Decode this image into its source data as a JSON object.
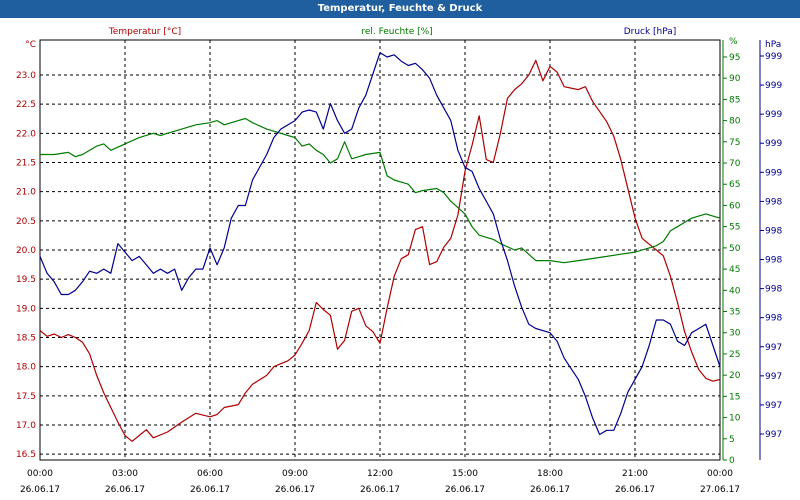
{
  "window": {
    "title": "Temperatur, Feuchte & Druck"
  },
  "chart_data": {
    "type": "line",
    "title": "Temperatur, Feuchte & Druck",
    "x_ticks": [
      {
        "time": "00:00",
        "date": "26.06.17"
      },
      {
        "time": "03:00",
        "date": "26.06.17"
      },
      {
        "time": "06:00",
        "date": "26.06.17"
      },
      {
        "time": "09:00",
        "date": "26.06.17"
      },
      {
        "time": "12:00",
        "date": "26.06.17"
      },
      {
        "time": "15:00",
        "date": "26.06.17"
      },
      {
        "time": "18:00",
        "date": "26.06.17"
      },
      {
        "time": "21:00",
        "date": "26.06.17"
      },
      {
        "time": "00:00",
        "date": "27.06.17"
      }
    ],
    "x_range_hours": [
      0,
      24
    ],
    "grid": true,
    "axes": {
      "temperature": {
        "label": "Temperatur [°C]",
        "unit": "°C",
        "color": "#b00000",
        "side": "left",
        "ylim": [
          16.4,
          23.6
        ],
        "ticks": [
          "16.5",
          "17.0",
          "17.5",
          "18.0",
          "18.5",
          "19.0",
          "19.5",
          "20.0",
          "20.5",
          "21.0",
          "21.5",
          "22.0",
          "22.5",
          "23.0"
        ]
      },
      "humidity": {
        "label": "rel. Feuchte [%]",
        "unit": "%",
        "color": "#007a00",
        "side": "right",
        "ylim": [
          0,
          99
        ],
        "ticks": [
          "0",
          "5",
          "10",
          "15",
          "20",
          "25",
          "30",
          "35",
          "40",
          "45",
          "50",
          "55",
          "60",
          "65",
          "70",
          "75",
          "80",
          "85",
          "90",
          "95"
        ]
      },
      "pressure": {
        "label": "Druck [hPa]",
        "unit": "hPa",
        "color": "#000090",
        "side": "right",
        "ticks": [
          "997",
          "997",
          "997",
          "997",
          "998",
          "998",
          "998",
          "998",
          "998",
          "999",
          "999",
          "999",
          "999",
          "999"
        ]
      }
    },
    "series": [
      {
        "name": "Temperatur [°C]",
        "axis": "temperature",
        "color": "#b00000",
        "points": [
          [
            0,
            18.62
          ],
          [
            0.25,
            18.52
          ],
          [
            0.5,
            18.56
          ],
          [
            0.75,
            18.5
          ],
          [
            1,
            18.55
          ],
          [
            1.25,
            18.5
          ],
          [
            1.5,
            18.42
          ],
          [
            1.75,
            18.22
          ],
          [
            2,
            17.85
          ],
          [
            2.25,
            17.55
          ],
          [
            2.5,
            17.3
          ],
          [
            2.75,
            17.05
          ],
          [
            3,
            16.82
          ],
          [
            3.25,
            16.72
          ],
          [
            3.5,
            16.82
          ],
          [
            3.75,
            16.92
          ],
          [
            4,
            16.78
          ],
          [
            4.5,
            16.88
          ],
          [
            5,
            17.05
          ],
          [
            5.5,
            17.2
          ],
          [
            6,
            17.14
          ],
          [
            6.25,
            17.18
          ],
          [
            6.5,
            17.3
          ],
          [
            7,
            17.35
          ],
          [
            7.25,
            17.55
          ],
          [
            7.5,
            17.7
          ],
          [
            8,
            17.85
          ],
          [
            8.25,
            18.0
          ],
          [
            8.5,
            18.05
          ],
          [
            8.75,
            18.1
          ],
          [
            9,
            18.2
          ],
          [
            9.25,
            18.4
          ],
          [
            9.5,
            18.62
          ],
          [
            9.75,
            19.1
          ],
          [
            10,
            18.98
          ],
          [
            10.25,
            18.88
          ],
          [
            10.5,
            18.3
          ],
          [
            10.75,
            18.45
          ],
          [
            11,
            18.95
          ],
          [
            11.25,
            19.0
          ],
          [
            11.5,
            18.7
          ],
          [
            11.75,
            18.6
          ],
          [
            12,
            18.4
          ],
          [
            12.25,
            19.0
          ],
          [
            12.5,
            19.55
          ],
          [
            12.75,
            19.85
          ],
          [
            13,
            19.92
          ],
          [
            13.25,
            20.35
          ],
          [
            13.5,
            20.4
          ],
          [
            13.75,
            19.75
          ],
          [
            14,
            19.8
          ],
          [
            14.25,
            20.05
          ],
          [
            14.5,
            20.2
          ],
          [
            14.75,
            20.6
          ],
          [
            15,
            21.35
          ],
          [
            15.25,
            21.8
          ],
          [
            15.5,
            22.3
          ],
          [
            15.75,
            21.55
          ],
          [
            16,
            21.5
          ],
          [
            16.25,
            22.0
          ],
          [
            16.5,
            22.6
          ],
          [
            16.75,
            22.75
          ],
          [
            17,
            22.85
          ],
          [
            17.25,
            23.0
          ],
          [
            17.5,
            23.25
          ],
          [
            17.75,
            22.9
          ],
          [
            18,
            23.15
          ],
          [
            18.25,
            23.05
          ],
          [
            18.5,
            22.8
          ],
          [
            19,
            22.75
          ],
          [
            19.25,
            22.8
          ],
          [
            19.5,
            22.55
          ],
          [
            20,
            22.2
          ],
          [
            20.25,
            21.95
          ],
          [
            20.5,
            21.55
          ],
          [
            20.75,
            21.05
          ],
          [
            21,
            20.55
          ],
          [
            21.25,
            20.2
          ],
          [
            21.5,
            20.1
          ],
          [
            21.75,
            20.0
          ],
          [
            22,
            19.9
          ],
          [
            22.25,
            19.55
          ],
          [
            22.5,
            19.1
          ],
          [
            22.75,
            18.6
          ],
          [
            23,
            18.25
          ],
          [
            23.25,
            17.95
          ],
          [
            23.5,
            17.8
          ],
          [
            23.75,
            17.75
          ],
          [
            24,
            17.78
          ]
        ]
      },
      {
        "name": "rel. Feuchte [%]",
        "axis": "humidity",
        "color": "#007a00",
        "points": [
          [
            0,
            72
          ],
          [
            0.5,
            72
          ],
          [
            1,
            72.5
          ],
          [
            1.25,
            71.5
          ],
          [
            1.5,
            72
          ],
          [
            2,
            74
          ],
          [
            2.25,
            74.5
          ],
          [
            2.5,
            73
          ],
          [
            3,
            74.5
          ],
          [
            3.5,
            76
          ],
          [
            4,
            77
          ],
          [
            4.25,
            76.5
          ],
          [
            4.5,
            77
          ],
          [
            5,
            78
          ],
          [
            5.5,
            79
          ],
          [
            6,
            79.5
          ],
          [
            6.25,
            80
          ],
          [
            6.5,
            79
          ],
          [
            7,
            80
          ],
          [
            7.25,
            80.5
          ],
          [
            7.5,
            79.5
          ],
          [
            8,
            78
          ],
          [
            8.5,
            77
          ],
          [
            8.75,
            76.5
          ],
          [
            9,
            76
          ],
          [
            9.25,
            74
          ],
          [
            9.5,
            74.5
          ],
          [
            9.75,
            73
          ],
          [
            10,
            72
          ],
          [
            10.25,
            70
          ],
          [
            10.5,
            71
          ],
          [
            10.75,
            75
          ],
          [
            11,
            71
          ],
          [
            11.25,
            71.5
          ],
          [
            11.5,
            72
          ],
          [
            12,
            72.5
          ],
          [
            12.25,
            67
          ],
          [
            12.5,
            66
          ],
          [
            13,
            65
          ],
          [
            13.25,
            63
          ],
          [
            13.5,
            63.5
          ],
          [
            14,
            64
          ],
          [
            14.25,
            63
          ],
          [
            14.5,
            61
          ],
          [
            15,
            58
          ],
          [
            15.25,
            55
          ],
          [
            15.5,
            53
          ],
          [
            16,
            52
          ],
          [
            16.25,
            51
          ],
          [
            16.75,
            49.5
          ],
          [
            17,
            50
          ],
          [
            17.5,
            47
          ],
          [
            18,
            47
          ],
          [
            18.5,
            46.5
          ],
          [
            19,
            47
          ],
          [
            19.5,
            47.5
          ],
          [
            20,
            48
          ],
          [
            20.5,
            48.5
          ],
          [
            21,
            49
          ],
          [
            21.5,
            50
          ],
          [
            21.75,
            50.5
          ],
          [
            22,
            51.5
          ],
          [
            22.25,
            54
          ],
          [
            22.5,
            55
          ],
          [
            22.75,
            56
          ],
          [
            23,
            57
          ],
          [
            23.5,
            58
          ],
          [
            23.75,
            57.5
          ],
          [
            24,
            57
          ]
        ]
      },
      {
        "name": "Druck [hPa]",
        "axis": "pressure",
        "color": "#000090",
        "points": [
          [
            0,
            48
          ],
          [
            0.25,
            44
          ],
          [
            0.5,
            42
          ],
          [
            0.75,
            39
          ],
          [
            1,
            39
          ],
          [
            1.25,
            40
          ],
          [
            1.5,
            42
          ],
          [
            1.75,
            44.5
          ],
          [
            2,
            44
          ],
          [
            2.25,
            45
          ],
          [
            2.5,
            44
          ],
          [
            2.75,
            51
          ],
          [
            3,
            49
          ],
          [
            3.25,
            47
          ],
          [
            3.5,
            48
          ],
          [
            3.75,
            46
          ],
          [
            4,
            44
          ],
          [
            4.25,
            45
          ],
          [
            4.5,
            44
          ],
          [
            4.75,
            45
          ],
          [
            5,
            40
          ],
          [
            5.25,
            43
          ],
          [
            5.5,
            45
          ],
          [
            5.75,
            45
          ],
          [
            6,
            50
          ],
          [
            6.25,
            46
          ],
          [
            6.5,
            50
          ],
          [
            6.75,
            57
          ],
          [
            7,
            60
          ],
          [
            7.25,
            60
          ],
          [
            7.5,
            66
          ],
          [
            8,
            72
          ],
          [
            8.25,
            76
          ],
          [
            8.5,
            78
          ],
          [
            9,
            80
          ],
          [
            9.25,
            82
          ],
          [
            9.5,
            82.5
          ],
          [
            9.75,
            82
          ],
          [
            10,
            78
          ],
          [
            10.25,
            84
          ],
          [
            10.5,
            80
          ],
          [
            10.75,
            77
          ],
          [
            11,
            78
          ],
          [
            11.25,
            83
          ],
          [
            11.5,
            86
          ],
          [
            11.75,
            91
          ],
          [
            12,
            96
          ],
          [
            12.25,
            95
          ],
          [
            12.5,
            95.5
          ],
          [
            12.75,
            94
          ],
          [
            13,
            93
          ],
          [
            13.25,
            93.5
          ],
          [
            13.5,
            92
          ],
          [
            13.75,
            90
          ],
          [
            14,
            86
          ],
          [
            14.5,
            80
          ],
          [
            14.75,
            73
          ],
          [
            15,
            69
          ],
          [
            15.25,
            68
          ],
          [
            15.5,
            64
          ],
          [
            16,
            58
          ],
          [
            16.25,
            52
          ],
          [
            16.5,
            47
          ],
          [
            16.75,
            41
          ],
          [
            17,
            36
          ],
          [
            17.25,
            32
          ],
          [
            17.5,
            31
          ],
          [
            18,
            30
          ],
          [
            18.25,
            28
          ],
          [
            18.5,
            24
          ],
          [
            19,
            19
          ],
          [
            19.25,
            15
          ],
          [
            19.5,
            10
          ],
          [
            19.75,
            6
          ],
          [
            20,
            7
          ],
          [
            20.25,
            7
          ],
          [
            20.5,
            11
          ],
          [
            20.75,
            16
          ],
          [
            21,
            19
          ],
          [
            21.25,
            22
          ],
          [
            21.5,
            27
          ],
          [
            21.75,
            33
          ],
          [
            22,
            33
          ],
          [
            22.25,
            32
          ],
          [
            22.5,
            28
          ],
          [
            22.75,
            27
          ],
          [
            23,
            30
          ],
          [
            23.25,
            31
          ],
          [
            23.5,
            32
          ],
          [
            23.75,
            27
          ],
          [
            24,
            22
          ]
        ]
      }
    ]
  }
}
